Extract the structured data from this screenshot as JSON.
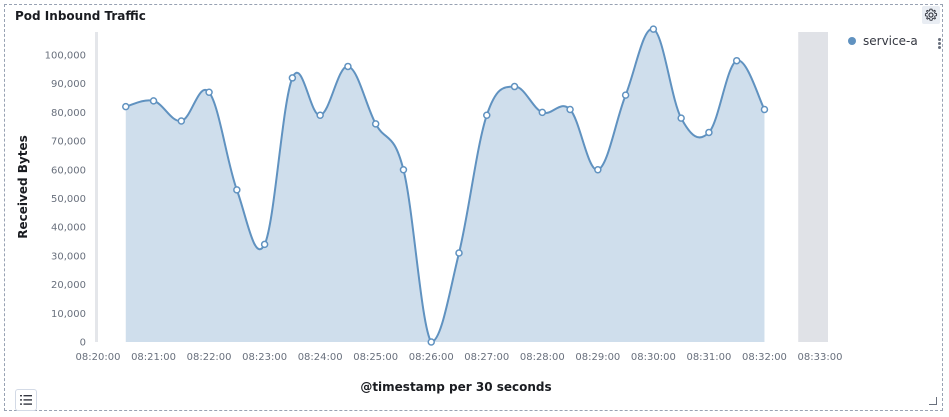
{
  "panel": {
    "title": "Pod Inbound Traffic",
    "settings_icon": "gear-icon",
    "legend_toggle_icon": "list-icon"
  },
  "chart_data": {
    "type": "area",
    "title": "Pod Inbound Traffic",
    "xlabel": "@timestamp per 30 seconds",
    "ylabel": "Received Bytes",
    "x_tick_labels": [
      "08:20:00",
      "08:21:00",
      "08:22:00",
      "08:23:00",
      "08:24:00",
      "08:25:00",
      "08:26:00",
      "08:27:00",
      "08:28:00",
      "08:29:00",
      "08:30:00",
      "08:31:00",
      "08:32:00",
      "08:33:00"
    ],
    "y_tick_labels": [
      "0",
      "10,000",
      "20,000",
      "30,000",
      "40,000",
      "50,000",
      "60,000",
      "70,000",
      "80,000",
      "90,000",
      "100,000"
    ],
    "y_ticks": [
      0,
      10000,
      20000,
      30000,
      40000,
      50000,
      60000,
      70000,
      80000,
      90000,
      100000
    ],
    "x_range": [
      "08:20:00",
      "08:33:00"
    ],
    "ylim": [
      0,
      108000
    ],
    "grid": false,
    "legend_position": "top-right",
    "series": [
      {
        "name": "service-a",
        "color": "#6092c0",
        "x": [
          "08:20:30",
          "08:21:00",
          "08:21:30",
          "08:22:00",
          "08:22:30",
          "08:23:00",
          "08:23:30",
          "08:24:00",
          "08:24:30",
          "08:25:00",
          "08:25:30",
          "08:26:00",
          "08:26:30",
          "08:27:00",
          "08:27:30",
          "08:28:00",
          "08:28:30",
          "08:29:00",
          "08:29:30",
          "08:30:00",
          "08:30:30",
          "08:31:00",
          "08:31:30",
          "08:32:00"
        ],
        "values": [
          82000,
          84000,
          77000,
          87000,
          53000,
          34000,
          92000,
          79000,
          96000,
          76000,
          60000,
          0,
          31000,
          79000,
          89000,
          80000,
          81000,
          60000,
          86000,
          109000,
          78000,
          73000,
          98000,
          81000
        ]
      }
    ],
    "grey_band_range": [
      "08:32:30",
      "08:33:00"
    ]
  }
}
